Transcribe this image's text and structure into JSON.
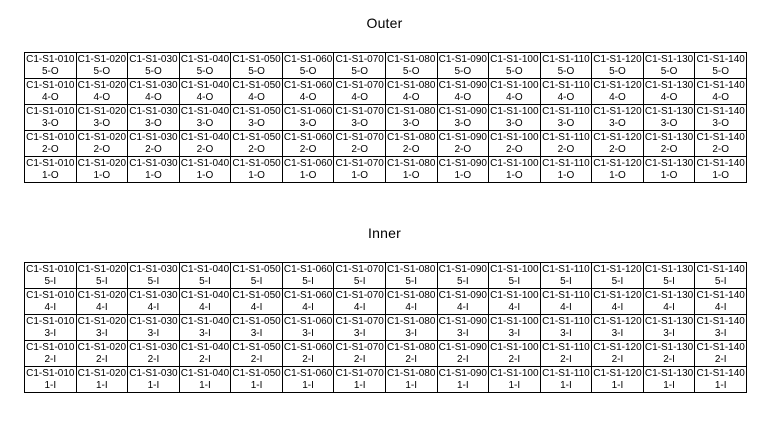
{
  "outer": {
    "title": "Outer",
    "rows": [
      [
        "C1-S1-0105-O",
        "C1-S1-0205-O",
        "C1-S1-0305-O",
        "C1-S1-0405-O",
        "C1-S1-0505-O",
        "C1-S1-0605-O",
        "C1-S1-0705-O",
        "C1-S1-0805-O",
        "C1-S1-0905-O",
        "C1-S1-1005-O",
        "C1-S1-1105-O",
        "C1-S1-1205-O",
        "C1-S1-1305-O",
        "C1-S1-1405-O"
      ],
      [
        "C1-S1-0104-O",
        "C1-S1-0204-O",
        "C1-S1-0304-O",
        "C1-S1-0404-O",
        "C1-S1-0504-O",
        "C1-S1-0604-O",
        "C1-S1-0704-O",
        "C1-S1-0804-O",
        "C1-S1-0904-O",
        "C1-S1-1004-O",
        "C1-S1-1104-O",
        "C1-S1-1204-O",
        "C1-S1-1304-O",
        "C1-S1-1404-O"
      ],
      [
        "C1-S1-0103-O",
        "C1-S1-0203-O",
        "C1-S1-0303-O",
        "C1-S1-0403-O",
        "C1-S1-0503-O",
        "C1-S1-0603-O",
        "C1-S1-0703-O",
        "C1-S1-0803-O",
        "C1-S1-0903-O",
        "C1-S1-1003-O",
        "C1-S1-1103-O",
        "C1-S1-1203-O",
        "C1-S1-1303-O",
        "C1-S1-1403-O"
      ],
      [
        "C1-S1-0102-O",
        "C1-S1-0202-O",
        "C1-S1-0302-O",
        "C1-S1-0402-O",
        "C1-S1-0502-O",
        "C1-S1-0602-O",
        "C1-S1-0702-O",
        "C1-S1-0802-O",
        "C1-S1-0902-O",
        "C1-S1-1002-O",
        "C1-S1-1102-O",
        "C1-S1-1202-O",
        "C1-S1-1302-O",
        "C1-S1-1402-O"
      ],
      [
        "C1-S1-0101-O",
        "C1-S1-0201-O",
        "C1-S1-0301-O",
        "C1-S1-0401-O",
        "C1-S1-0501-O",
        "C1-S1-0601-O",
        "C1-S1-0701-O",
        "C1-S1-0801-O",
        "C1-S1-0901-O",
        "C1-S1-1001-O",
        "C1-S1-1101-O",
        "C1-S1-1201-O",
        "C1-S1-1301-O",
        "C1-S1-1401-O"
      ]
    ]
  },
  "inner": {
    "title": "Inner",
    "rows": [
      [
        "C1-S1-0105-I",
        "C1-S1-0205-I",
        "C1-S1-0305-I",
        "C1-S1-0405-I",
        "C1-S1-0505-I",
        "C1-S1-0605-I",
        "C1-S1-0705-I",
        "C1-S1-0805-I",
        "C1-S1-0905-I",
        "C1-S1-1005-I",
        "C1-S1-1105-I",
        "C1-S1-1205-I",
        "C1-S1-1305-I",
        "C1-S1-1405-I"
      ],
      [
        "C1-S1-0104-I",
        "C1-S1-0204-I",
        "C1-S1-0304-I",
        "C1-S1-0404-I",
        "C1-S1-0504-I",
        "C1-S1-0604-I",
        "C1-S1-0704-I",
        "C1-S1-0804-I",
        "C1-S1-0904-I",
        "C1-S1-1004-I",
        "C1-S1-1104-I",
        "C1-S1-1204-I",
        "C1-S1-1304-I",
        "C1-S1-1404-I"
      ],
      [
        "C1-S1-0103-I",
        "C1-S1-0203-I",
        "C1-S1-0303-I",
        "C1-S1-0403-I",
        "C1-S1-0503-I",
        "C1-S1-0603-I",
        "C1-S1-0703-I",
        "C1-S1-0803-I",
        "C1-S1-0903-I",
        "C1-S1-1003-I",
        "C1-S1-1103-I",
        "C1-S1-1203-I",
        "C1-S1-1303-I",
        "C1-S1-1403-I"
      ],
      [
        "C1-S1-0102-I",
        "C1-S1-0202-I",
        "C1-S1-0302-I",
        "C1-S1-0402-I",
        "C1-S1-0502-I",
        "C1-S1-0602-I",
        "C1-S1-0702-I",
        "C1-S1-0802-I",
        "C1-S1-0902-I",
        "C1-S1-1002-I",
        "C1-S1-1102-I",
        "C1-S1-1202-I",
        "C1-S1-1302-I",
        "C1-S1-1402-I"
      ],
      [
        "C1-S1-0101-I",
        "C1-S1-0201-I",
        "C1-S1-0301-I",
        "C1-S1-0401-I",
        "C1-S1-0501-I",
        "C1-S1-0601-I",
        "C1-S1-0701-I",
        "C1-S1-0801-I",
        "C1-S1-0901-I",
        "C1-S1-1001-I",
        "C1-S1-1101-I",
        "C1-S1-1201-I",
        "C1-S1-1301-I",
        "C1-S1-1401-I"
      ]
    ]
  }
}
